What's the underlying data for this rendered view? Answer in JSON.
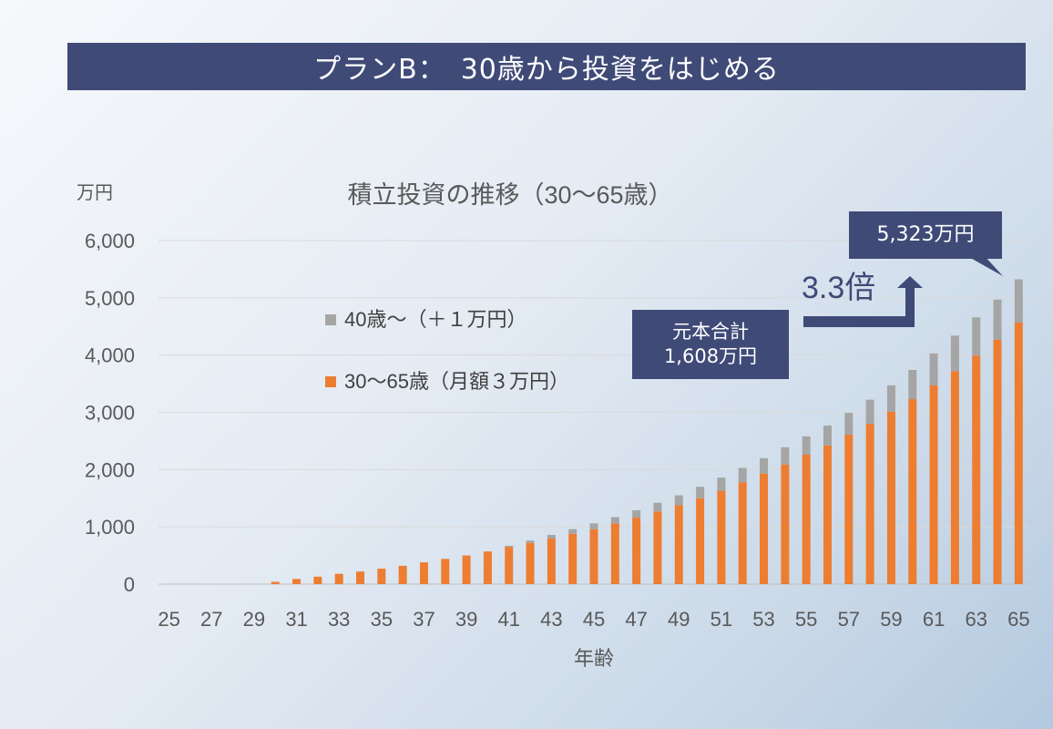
{
  "banner": {
    "title": "プランB：　30歳から投資をはじめる"
  },
  "annotations": {
    "principal_line1": "元本合計",
    "principal_line2": "1,608万円",
    "multiplier": "3.3倍",
    "final_value": "5,323万円"
  },
  "colors": {
    "base": "#ed7d31",
    "additional": "#a5a5a5",
    "banner": "#3f4a77"
  },
  "chart_data": {
    "type": "bar",
    "stacked": true,
    "title": "積立投資の推移（30〜65歳）",
    "xlabel": "年齢",
    "ylabel": "万円",
    "ylim": [
      0,
      6000
    ],
    "yticks": [
      0,
      1000,
      2000,
      3000,
      4000,
      5000,
      6000
    ],
    "ytick_labels": [
      "0",
      "1,000",
      "2,000",
      "3,000",
      "4,000",
      "5,000",
      "6,000"
    ],
    "grid": true,
    "legend_position": "upper-left inside plot",
    "categories": [
      25,
      26,
      27,
      28,
      29,
      30,
      31,
      32,
      33,
      34,
      35,
      36,
      37,
      38,
      39,
      40,
      41,
      42,
      43,
      44,
      45,
      46,
      47,
      48,
      49,
      50,
      51,
      52,
      53,
      54,
      55,
      56,
      57,
      58,
      59,
      60,
      61,
      62,
      63,
      64,
      65
    ],
    "xtick_labels": [
      "25",
      "27",
      "29",
      "31",
      "33",
      "35",
      "37",
      "39",
      "41",
      "43",
      "45",
      "47",
      "49",
      "51",
      "53",
      "55",
      "57",
      "59",
      "61",
      "63",
      "65"
    ],
    "series": [
      {
        "name": "30〜65歳（月額３万円）",
        "color": "#ed7d31",
        "values": [
          0,
          0,
          0,
          0,
          0,
          40,
          90,
          130,
          180,
          220,
          270,
          320,
          380,
          440,
          500,
          570,
          650,
          720,
          800,
          880,
          960,
          1060,
          1160,
          1270,
          1380,
          1500,
          1630,
          1780,
          1930,
          2090,
          2260,
          2420,
          2610,
          2800,
          3010,
          3230,
          3470,
          3720,
          3990,
          4270,
          4570
        ]
      },
      {
        "name": "40歳〜（＋１万円）",
        "color": "#a5a5a5",
        "values": [
          0,
          0,
          0,
          0,
          0,
          0,
          0,
          0,
          0,
          0,
          0,
          0,
          0,
          0,
          0,
          0,
          20,
          40,
          60,
          80,
          100,
          110,
          130,
          150,
          170,
          200,
          230,
          250,
          270,
          300,
          320,
          350,
          380,
          420,
          460,
          510,
          560,
          620,
          670,
          700,
          753
        ]
      }
    ]
  }
}
